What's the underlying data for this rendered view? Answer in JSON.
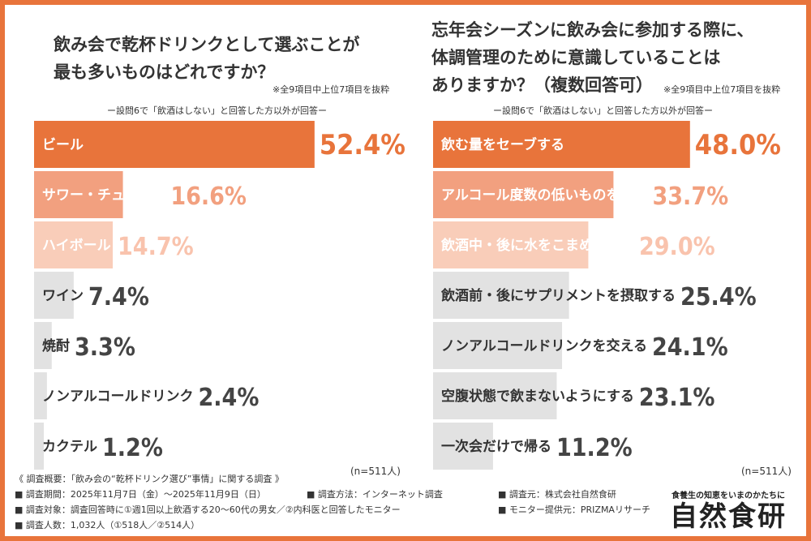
{
  "colors": {
    "border": "#e8743b",
    "bar_top": "#e8743b",
    "bar_mid": "#f2a07f",
    "bar_low": "#f9cdb9",
    "bar_gray": "#e2e2e2",
    "value_top": "#e8743b",
    "value_mid": "#f2a07f",
    "value_low": "#f9c3ad",
    "value_gray": "#444444"
  },
  "left": {
    "title": "飲み会で乾杯ドリンクとして選ぶことが\n最も多いものはどれですか？",
    "note": "※全9項目中上位7項目を抜粋",
    "subnote": "ー設問6で「飲酒はしない」と回答した方以外が回答ー",
    "n": "(n=511人)"
  },
  "right": {
    "title": "忘年会シーズンに飲み会に参加する際に、\n体調管理のために意識していることは\nありますか？（複数回答可）",
    "note": "※全9項目中上位7項目を抜粋",
    "subnote": "ー設問6で「飲酒はしない」と回答した方以外が回答ー",
    "n": "(n=511人)"
  },
  "chart_data": [
    {
      "type": "bar",
      "orientation": "horizontal",
      "title": "飲み会で乾杯ドリンクとして選ぶことが最も多いものはどれですか？",
      "categories": [
        "ビール",
        "サワー・チューハイ",
        "ハイボール",
        "ワイン",
        "焼酎",
        "ノンアルコールドリンク",
        "カクテル"
      ],
      "values": [
        52.4,
        16.6,
        14.7,
        7.4,
        3.3,
        2.4,
        1.2
      ],
      "value_labels": [
        "52.4%",
        "16.6%",
        "14.7%",
        "7.4%",
        "3.3%",
        "2.4%",
        "1.2%"
      ],
      "xlim": [
        0,
        100
      ]
    },
    {
      "type": "bar",
      "orientation": "horizontal",
      "title": "忘年会シーズンに飲み会に参加する際に、体調管理のために意識していることはありますか？（複数回答可）",
      "categories": [
        "飲む量をセーブする",
        "アルコール度数の低いものを選ぶ",
        "飲酒中・後に水をこまめに飲む",
        "飲酒前・後にサプリメントを摂取する",
        "ノンアルコールドリンクを交える",
        "空腹状態で飲まないようにする",
        "一次会だけで帰る"
      ],
      "values": [
        48.0,
        33.7,
        29.0,
        25.4,
        24.1,
        23.1,
        11.2
      ],
      "value_labels": [
        "48.0%",
        "33.7%",
        "29.0%",
        "25.4%",
        "24.1%",
        "23.1%",
        "11.2%"
      ],
      "xlim": [
        0,
        100
      ]
    }
  ],
  "survey": {
    "heading": "《 調査概要：「飲み会の“乾杯ドリンク選び”事情」に関する調査 》",
    "period": "■ 調査期間：2025年11月7日（金）〜2025年11月9日（日）",
    "method": "■ 調査方法：インターネット調査",
    "source": "■ 調査元：株式会社自然食研",
    "target": "■ 調査対象：調査回答時に①週1回以上飲酒する20〜60代の男女／②内科医と回答したモニター",
    "provider": "■ モニター提供元：PRIZMAリサーチ",
    "count": "■ 調査人数：1,032人（①518人／②514人）"
  },
  "logo": {
    "tagline": "食養生の知恵をいまのかたちに",
    "name": "自然食研"
  }
}
